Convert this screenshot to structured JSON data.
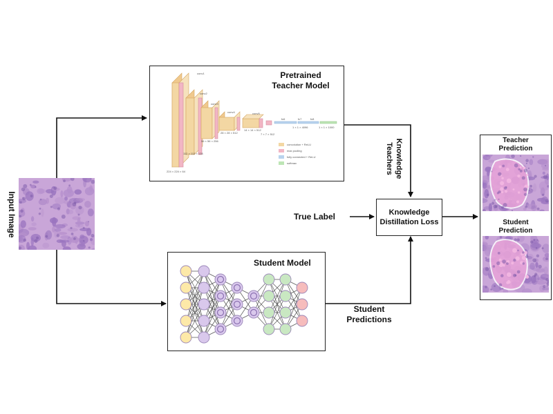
{
  "input": {
    "label": "Input Image"
  },
  "teacher": {
    "title_line1": "Pretrained",
    "title_line2": "Teacher Model",
    "stages": [
      "conv1",
      "conv2",
      "conv3",
      "conv4",
      "conv5",
      "fc6",
      "fc7",
      "fc8"
    ],
    "dims": [
      "224 × 224 × 64",
      "112 × 112 × 128",
      "56 × 56 × 256",
      "28 × 28 × 512",
      "14 × 14 × 512",
      "7 × 7 × 512",
      "1 × 1 × 4096",
      "1 × 1 × 1000"
    ],
    "legend": [
      "convolution + ReLU",
      "max pooling",
      "fully connected + ReLU",
      "softmax"
    ],
    "legend_colors": [
      "#f3d7a3",
      "#f2b6c4",
      "#b9d3ee",
      "#bde5b5"
    ]
  },
  "student": {
    "title": "Student Model",
    "layer_colors": [
      "#fde9a8",
      "#d9c8ec",
      "#d9c8ec",
      "#d9c8ec",
      "#d9c8ec",
      "#c9e8c2",
      "#c9e8c2",
      "#f6bcbc"
    ]
  },
  "kd": {
    "line1": "Knowledge",
    "line2": "Distillation Loss"
  },
  "labels": {
    "true_label": "True Label",
    "knowledge_line1": "Knowledge",
    "knowledge_line2": "Teachers",
    "student_pred_line1": "Student",
    "student_pred_line2": "Predictions"
  },
  "output": {
    "teacher_line1": "Teacher",
    "teacher_line2": "Prediction",
    "student_line1": "Student",
    "student_line2": "Prediction"
  },
  "colors": {
    "tissue_purple": "#9a74bf",
    "tissue_pink": "#e8a3d8"
  }
}
